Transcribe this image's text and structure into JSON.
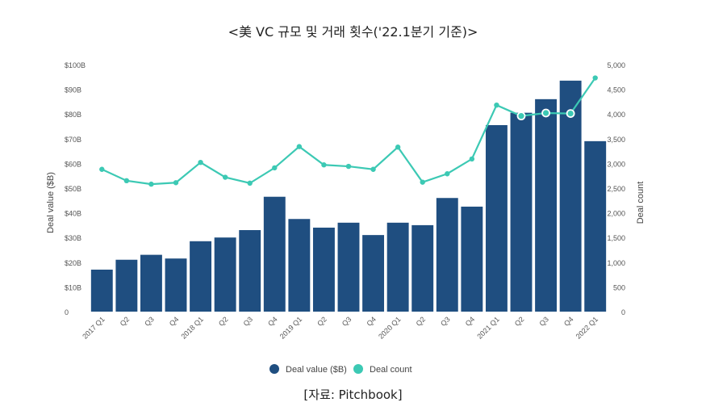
{
  "chart_data": {
    "type": "bar",
    "title": "<美 VC 규모 및 거래 횟수('22.1분기 기준)>",
    "source": "[자료: Pitchbook]",
    "categories": [
      "2017 Q1",
      "Q2",
      "Q3",
      "Q4",
      "2018 Q1",
      "Q2",
      "Q3",
      "Q4",
      "2019 Q1",
      "Q2",
      "Q3",
      "Q4",
      "2020 Q1",
      "Q2",
      "Q3",
      "Q4",
      "2021 Q1",
      "Q2",
      "Q3",
      "Q4",
      "2022 Q1"
    ],
    "series": [
      {
        "name": "Deal value ($B)",
        "type": "bar",
        "axis": "left",
        "color": "#1f4e80",
        "values": [
          17,
          21,
          23,
          21.5,
          28.5,
          30,
          33,
          46.5,
          37.5,
          34,
          36,
          31,
          36,
          35,
          46,
          42.5,
          75.5,
          80.5,
          86,
          93.5,
          69
        ]
      },
      {
        "name": "Deal count",
        "type": "line",
        "axis": "right",
        "color": "#3cc9b4",
        "values": [
          2880,
          2650,
          2580,
          2610,
          3020,
          2720,
          2600,
          2910,
          3340,
          2970,
          2940,
          2880,
          3330,
          2620,
          2790,
          3090,
          4180,
          3960,
          4020,
          4010,
          4730
        ]
      }
    ],
    "ylabel": "Deal value ($B)",
    "y2label": "Deal count",
    "ylim": [
      0,
      100
    ],
    "y2lim": [
      0,
      5000
    ],
    "yticks": [
      "0",
      "$10B",
      "$20B",
      "$30B",
      "$40B",
      "$50B",
      "$60B",
      "$70B",
      "$80B",
      "$90B",
      "$100B"
    ],
    "y2ticks": [
      "0",
      "500",
      "1,000",
      "1,500",
      "2,000",
      "2,500",
      "3,000",
      "3,500",
      "4,000",
      "4,500",
      "5,000"
    ],
    "legend": [
      "Deal value ($B)",
      "Deal count"
    ],
    "legend_position": "bottom-center",
    "grid": false
  }
}
